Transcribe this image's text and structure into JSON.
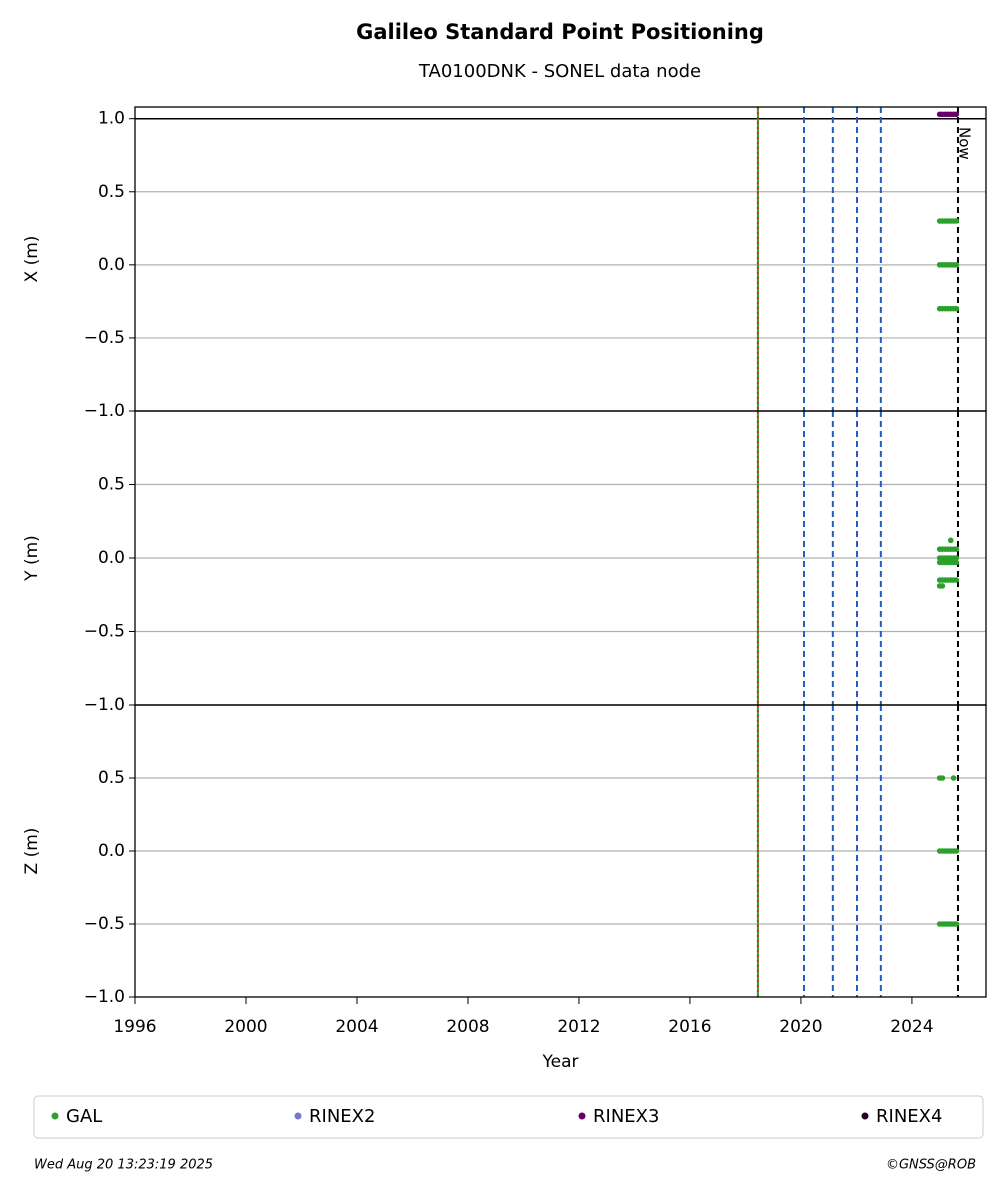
{
  "title": "Galileo Standard Point Positioning",
  "subtitle": "TA0100DNK - SONEL data node",
  "footer_left": "Wed Aug 20 13:23:19 2025",
  "footer_right": "©GNSS@ROB",
  "legend": [
    {
      "name": "GAL",
      "color": "#2ca02c"
    },
    {
      "name": "RINEX2",
      "color": "#7777cc"
    },
    {
      "name": "RINEX3",
      "color": "#660066"
    },
    {
      "name": "RINEX4",
      "color": "#220022"
    }
  ],
  "markers": {
    "vlines": [
      {
        "x": 2018.45,
        "color": "#2ca02c",
        "dash": "none"
      },
      {
        "x": 2018.45,
        "color": "#d62728",
        "dash": "2,3"
      },
      {
        "x": 2020.11,
        "color": "#1f5fbf",
        "dash": "6,4"
      },
      {
        "x": 2021.15,
        "color": "#1f5fbf",
        "dash": "6,4"
      },
      {
        "x": 2022.02,
        "color": "#1f5fbf",
        "dash": "6,4"
      },
      {
        "x": 2022.88,
        "color": "#1f5fbf",
        "dash": "6,4"
      },
      {
        "x": 2025.66,
        "color": "#000000",
        "dash": "6,4"
      }
    ],
    "annotation": {
      "text": "Now",
      "x": 2025.66
    }
  },
  "chart_data": [
    {
      "type": "scatter",
      "ylabel": "X (m)",
      "xlim": [
        1996,
        2026.67
      ],
      "ylim": [
        -1,
        1.08
      ],
      "yticks": [
        {
          "value": -1,
          "label": "−1.0"
        },
        {
          "value": -0.5,
          "label": "−0.5"
        },
        {
          "value": 0,
          "label": "0.0"
        },
        {
          "value": 0.5,
          "label": "0.5"
        },
        {
          "value": 1,
          "label": "1.0"
        }
      ],
      "hlines": [
        1
      ],
      "grid": true,
      "series": [
        {
          "name": "GAL",
          "color": "#2ca02c",
          "x": [
            2025.0,
            2025.1,
            2025.2,
            2025.3,
            2025.4,
            2025.5,
            2025.6,
            2025.0,
            2025.1,
            2025.2,
            2025.3,
            2025.4,
            2025.5,
            2025.6,
            2025.0,
            2025.1,
            2025.2,
            2025.3,
            2025.4,
            2025.5,
            2025.6
          ],
          "values": [
            0.3,
            0.3,
            0.3,
            0.3,
            0.3,
            0.3,
            0.3,
            0,
            0,
            0,
            0,
            0,
            0,
            0,
            -0.3,
            -0.3,
            -0.3,
            -0.3,
            -0.3,
            -0.3,
            -0.3
          ]
        },
        {
          "name": "RINEX3",
          "color": "#660066",
          "x": [
            2025.0,
            2025.1,
            2025.2,
            2025.3,
            2025.4,
            2025.5,
            2025.6
          ],
          "values": [
            1.03,
            1.03,
            1.03,
            1.03,
            1.03,
            1.03,
            1.03
          ]
        }
      ]
    },
    {
      "type": "scatter",
      "ylabel": "Y (m)",
      "xlim": [
        1996,
        2026.67
      ],
      "ylim": [
        -1,
        1
      ],
      "yticks": [
        {
          "value": -1,
          "label": "−1.0"
        },
        {
          "value": -0.5,
          "label": "−0.5"
        },
        {
          "value": 0,
          "label": "0.0"
        },
        {
          "value": 0.5,
          "label": "0.5"
        }
      ],
      "grid": true,
      "series": [
        {
          "name": "GAL",
          "color": "#2ca02c",
          "x": [
            2025.0,
            2025.1,
            2025.2,
            2025.3,
            2025.4,
            2025.5,
            2025.6,
            2025.0,
            2025.1,
            2025.2,
            2025.3,
            2025.4,
            2025.5,
            2025.6,
            2025.0,
            2025.1,
            2025.2,
            2025.3,
            2025.4,
            2025.5,
            2025.6,
            2025.0,
            2025.1,
            2025.2,
            2025.3,
            2025.4,
            2025.5,
            2025.6,
            2025.0,
            2025.1,
            2025.4
          ],
          "values": [
            0.06,
            0.06,
            0.06,
            0.06,
            0.06,
            0.06,
            0.06,
            0,
            0,
            0,
            0,
            0,
            0,
            0,
            -0.03,
            -0.03,
            -0.03,
            -0.03,
            -0.03,
            -0.03,
            -0.03,
            -0.15,
            -0.15,
            -0.15,
            -0.15,
            -0.15,
            -0.15,
            -0.15,
            -0.19,
            -0.19,
            0.12
          ]
        }
      ]
    },
    {
      "type": "scatter",
      "ylabel": "Z (m)",
      "xlabel": "Year",
      "xlim": [
        1996,
        2026.67
      ],
      "ylim": [
        -1,
        1
      ],
      "yticks": [
        {
          "value": -1,
          "label": "−1.0"
        },
        {
          "value": -0.5,
          "label": "−0.5"
        },
        {
          "value": 0,
          "label": "0.0"
        },
        {
          "value": 0.5,
          "label": "0.5"
        }
      ],
      "xticks": [
        1996,
        2000,
        2004,
        2008,
        2012,
        2016,
        2020,
        2024
      ],
      "grid": true,
      "series": [
        {
          "name": "GAL",
          "color": "#2ca02c",
          "x": [
            2025.0,
            2025.1,
            2025.5,
            2025.0,
            2025.1,
            2025.2,
            2025.3,
            2025.4,
            2025.5,
            2025.6,
            2025.0,
            2025.1,
            2025.2,
            2025.3,
            2025.4,
            2025.5,
            2025.6
          ],
          "values": [
            0.5,
            0.5,
            0.5,
            0,
            0,
            0,
            0,
            0,
            0,
            0,
            -0.5,
            -0.5,
            -0.5,
            -0.5,
            -0.5,
            -0.5,
            -0.5
          ]
        }
      ]
    }
  ]
}
